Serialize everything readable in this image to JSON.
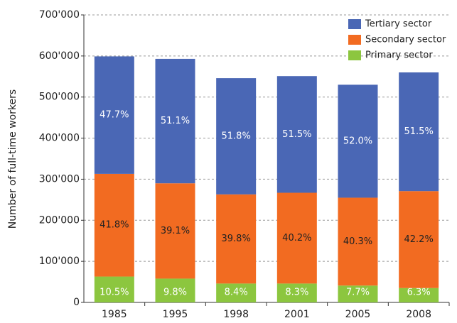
{
  "chart_data": {
    "type": "stacked_bar",
    "y_label": "Number of full-time workers",
    "categories": [
      "1985",
      "1995",
      "1998",
      "2001",
      "2005",
      "2008"
    ],
    "series": [
      {
        "name": "Primary sector",
        "color": "#8cc63f",
        "label_color": "#ffffff",
        "values": [
          63000,
          58000,
          46000,
          46000,
          41000,
          35000
        ],
        "percent_labels": [
          "10.5%",
          "9.8%",
          "8.4%",
          "8.3%",
          "7.7%",
          "6.3%"
        ]
      },
      {
        "name": "Secondary sector",
        "color": "#f26b21",
        "label_color": "#222222",
        "values": [
          250000,
          232000,
          217000,
          221000,
          214000,
          236000
        ],
        "percent_labels": [
          "41.8%",
          "39.1%",
          "39.8%",
          "40.2%",
          "40.3%",
          "42.2%"
        ]
      },
      {
        "name": "Tertiary sector",
        "color": "#4a67b5",
        "label_color": "#ffffff",
        "values": [
          286000,
          303000,
          283000,
          284000,
          275000,
          289000
        ],
        "percent_labels": [
          "47.7%",
          "51.1%",
          "51.8%",
          "51.5%",
          "52.0%",
          "51.5%"
        ]
      }
    ],
    "ylim": [
      0,
      700000
    ],
    "yticks": [
      0,
      {
        "value": 100000,
        "label": "100'000"
      },
      {
        "value": 200000,
        "label": "200'000"
      },
      {
        "value": 300000,
        "label": "300'000"
      },
      {
        "value": 400000,
        "label": "400'000"
      },
      {
        "value": 500000,
        "label": "500'000"
      },
      {
        "value": 600000,
        "label": "600'000"
      },
      {
        "value": 700000,
        "label": "700'000"
      }
    ],
    "grid": true,
    "legend": "top-right"
  }
}
